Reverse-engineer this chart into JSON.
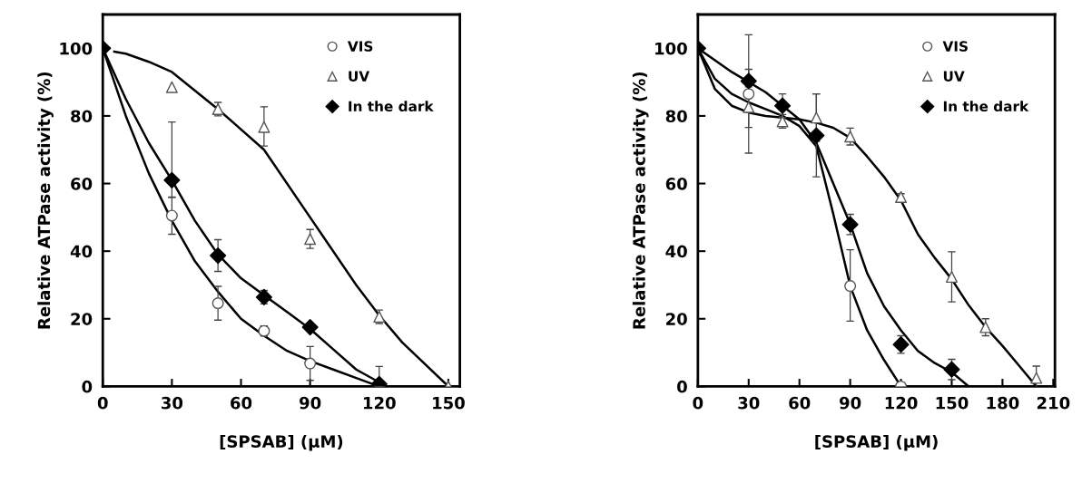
{
  "chart_data": [
    {
      "type": "scatter",
      "xlabel": "[SPSAB] (μM)",
      "ylabel": "Relative ATPase activity (%)",
      "xlim": [
        0,
        155
      ],
      "ylim": [
        0,
        110
      ],
      "xticks": [
        0,
        30,
        60,
        90,
        120,
        150
      ],
      "yticks": [
        0,
        20,
        40,
        60,
        80,
        100
      ],
      "grid": false,
      "legend": "top right",
      "series": [
        {
          "name": "VIS",
          "color": "#555555",
          "marker": "circle",
          "x": [
            30,
            50,
            70,
            90,
            120
          ],
          "values": [
            50.5,
            24.6,
            16.4,
            6.8,
            0
          ],
          "errors": [
            5.5,
            5,
            1.5,
            5,
            5.9
          ]
        },
        {
          "name": "UV",
          "color": "#555555",
          "marker": "triangle",
          "x": [
            30,
            50,
            70,
            90,
            120,
            150
          ],
          "values": [
            88.5,
            82,
            76.7,
            43.6,
            20.6,
            0
          ],
          "errors": [
            null,
            2,
            [
              71.1,
              82.7
            ],
            2.8,
            2,
            null
          ]
        },
        {
          "name": "In the dark",
          "color": "#000000",
          "marker": "diamond",
          "x": [
            0,
            30,
            50,
            70,
            90,
            120
          ],
          "values": [
            100,
            61,
            38.7,
            26.4,
            17.5,
            0.7
          ],
          "errors": [
            null,
            [
              55.9,
              78.2
            ],
            [
              34,
              43.4
            ],
            2,
            null,
            null
          ]
        },
        {
          "type": "line",
          "color": "#000000",
          "x": [
            0,
            10,
            20,
            30,
            40,
            50,
            60,
            70,
            80,
            90,
            100,
            110,
            120
          ],
          "values": [
            100,
            80,
            63,
            49,
            37,
            28,
            20,
            15,
            10.5,
            7.5,
            5,
            2.5,
            0
          ]
        },
        {
          "type": "line",
          "color": "#000000",
          "x": [
            0,
            10,
            20,
            30,
            40,
            50,
            60,
            70,
            80,
            90,
            100,
            110,
            120
          ],
          "values": [
            100,
            85,
            72,
            61,
            49,
            39,
            32,
            27,
            22,
            17,
            11,
            5,
            1.2
          ]
        },
        {
          "type": "line",
          "color": "#000000",
          "x": [
            5,
            10,
            20,
            30,
            50,
            70,
            90,
            110,
            120,
            130,
            150
          ],
          "values": [
            99,
            98.4,
            96,
            93,
            82,
            70,
            50,
            30,
            21,
            13,
            0
          ]
        }
      ]
    },
    {
      "type": "scatter",
      "xlabel": "[SPSAB] (μM)",
      "ylabel": "Relative ATPase activity (%)",
      "xlim": [
        0,
        211
      ],
      "ylim": [
        0,
        110
      ],
      "xticks": [
        0,
        30,
        60,
        90,
        120,
        150,
        180,
        210
      ],
      "yticks": [
        0,
        20,
        40,
        60,
        80,
        100
      ],
      "grid": false,
      "legend": "top right",
      "series": [
        {
          "name": "VIS",
          "color": "#555555",
          "marker": "circle",
          "x": [
            30,
            90,
            120
          ],
          "values": [
            86.5,
            29.7,
            0
          ],
          "errors": [
            17.5,
            [
              19.3,
              40.4
            ],
            null
          ]
        },
        {
          "name": "UV",
          "color": "#555555",
          "marker": "triangle",
          "x": [
            30,
            50,
            70,
            90,
            120,
            150,
            170,
            200
          ],
          "values": [
            82.6,
            78.4,
            79.5,
            73.9,
            56,
            32.4,
            17.5,
            2.5
          ],
          "errors": [
            6,
            2,
            7,
            2.5,
            1,
            7.4,
            2.5,
            3.5
          ]
        },
        {
          "name": "In the dark",
          "color": "#000000",
          "marker": "diamond",
          "x": [
            0,
            30,
            50,
            70,
            90,
            120,
            150
          ],
          "values": [
            100,
            90.3,
            83,
            74.2,
            47.9,
            12.4,
            5
          ],
          "errors": [
            null,
            3.5,
            3.5,
            [
              62,
              86.5
            ],
            3,
            2.6,
            3
          ]
        },
        {
          "type": "line",
          "color": "#000000",
          "x": [
            0,
            10,
            20,
            30,
            40,
            50,
            60,
            70,
            80,
            90,
            100,
            110,
            120
          ],
          "values": [
            100,
            91,
            86.5,
            84,
            82,
            80,
            77,
            71,
            51,
            29.7,
            16.6,
            7.8,
            0
          ]
        },
        {
          "type": "line",
          "color": "#000000",
          "x": [
            0,
            20,
            40,
            50,
            60,
            70,
            80,
            90,
            100,
            110,
            120,
            130,
            140,
            150,
            160
          ],
          "values": [
            100,
            93,
            87,
            83,
            79,
            72,
            60,
            48,
            33.5,
            23.7,
            16.6,
            10.5,
            6.9,
            4.2,
            0
          ]
        },
        {
          "type": "line",
          "color": "#000000",
          "x": [
            0,
            10,
            20,
            30,
            40,
            50,
            60,
            70,
            80,
            90,
            100,
            110,
            120,
            130,
            140,
            150,
            160,
            170,
            180,
            190,
            200
          ],
          "values": [
            100,
            88,
            83,
            81,
            80,
            79.5,
            79,
            78,
            76.5,
            73.5,
            68,
            62,
            55,
            45,
            38,
            31.7,
            24,
            17.5,
            12,
            6,
            0
          ]
        }
      ]
    }
  ]
}
